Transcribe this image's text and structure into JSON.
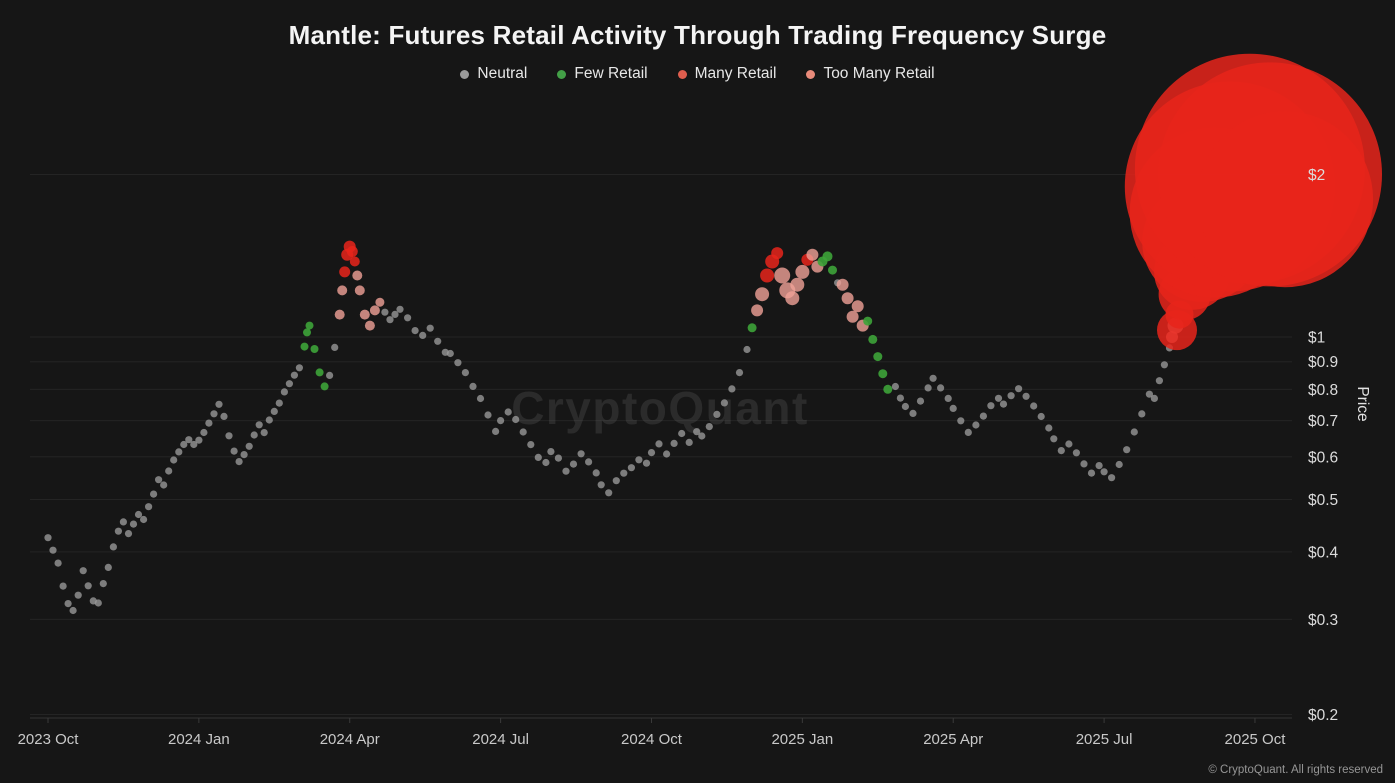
{
  "title": "Mantle: Futures Retail Activity Through Trading Frequency Surge",
  "watermark": "CryptoQuant",
  "footer": "© CryptoQuant. All rights reserved",
  "legend": [
    {
      "label": "Neutral",
      "color": "#9a9a9a"
    },
    {
      "label": "Few Retail",
      "color": "#43a047"
    },
    {
      "label": "Many Retail",
      "color": "#df5e4e"
    },
    {
      "label": "Too Many Retail",
      "color": "#e88a7a"
    }
  ],
  "chart_data": {
    "type": "scatter",
    "title": "Mantle: Futures Retail Activity Through Trading Frequency Surge",
    "x_axis": {
      "unit": "months since 2023-10",
      "ticks": [
        {
          "label": "2023 Oct",
          "m": 0
        },
        {
          "label": "2024 Jan",
          "m": 3
        },
        {
          "label": "2024 Apr",
          "m": 6
        },
        {
          "label": "2024 Jul",
          "m": 9
        },
        {
          "label": "2024 Oct",
          "m": 12
        },
        {
          "label": "2025 Jan",
          "m": 15
        },
        {
          "label": "2025 Apr",
          "m": 18
        },
        {
          "label": "2025 Jul",
          "m": 21
        },
        {
          "label": "2025 Oct",
          "m": 24
        }
      ]
    },
    "y_axis": {
      "label": "Price",
      "scale": "log",
      "range": [
        0.2,
        2.4
      ],
      "ticks": [
        {
          "label": "$2",
          "v": 2
        },
        {
          "label": "$1",
          "v": 1
        },
        {
          "label": "$0.9",
          "v": 0.9
        },
        {
          "label": "$0.8",
          "v": 0.8
        },
        {
          "label": "$0.7",
          "v": 0.7
        },
        {
          "label": "$0.6",
          "v": 0.6
        },
        {
          "label": "$0.5",
          "v": 0.5
        },
        {
          "label": "$0.4",
          "v": 0.4
        },
        {
          "label": "$0.3",
          "v": 0.3
        },
        {
          "label": "$0.2",
          "v": 0.2
        }
      ]
    },
    "categories": [
      {
        "name": "Neutral",
        "color": "#9b9b9b",
        "opacity": 0.78
      },
      {
        "name": "Few Retail",
        "color": "#3da339",
        "opacity": 0.9
      },
      {
        "name": "Many Retail",
        "color": "#f0a197",
        "opacity": 0.8
      },
      {
        "name": "Too Many Retail",
        "color": "#e7251b",
        "opacity": 0.85
      }
    ],
    "point_format": "[months_since_2023_10, price_usd, category_index, radius_px(optional)]",
    "points": [
      [
        0,
        0.425,
        0
      ],
      [
        0.1,
        0.405,
        0
      ],
      [
        0.2,
        0.385,
        0
      ],
      [
        0.3,
        0.35,
        0
      ],
      [
        0.4,
        0.325,
        0
      ],
      [
        0.5,
        0.315,
        0
      ],
      [
        0.6,
        0.335,
        0
      ],
      [
        0.7,
        0.37,
        0
      ],
      [
        0.8,
        0.345,
        0
      ],
      [
        0.9,
        0.322,
        0
      ],
      [
        1,
        0.318,
        0
      ],
      [
        1.1,
        0.345,
        0
      ],
      [
        1.2,
        0.37,
        0
      ],
      [
        1.3,
        0.405,
        0
      ],
      [
        1.4,
        0.435,
        0
      ],
      [
        1.5,
        0.455,
        0
      ],
      [
        1.6,
        0.435,
        0
      ],
      [
        1.7,
        0.455,
        0
      ],
      [
        1.8,
        0.475,
        0
      ],
      [
        1.9,
        0.465,
        0
      ],
      [
        2,
        0.49,
        0
      ],
      [
        2.1,
        0.515,
        0
      ],
      [
        2.2,
        0.545,
        0
      ],
      [
        2.3,
        0.53,
        0
      ],
      [
        2.4,
        0.56,
        0
      ],
      [
        2.5,
        0.585,
        0
      ],
      [
        2.6,
        0.605,
        0
      ],
      [
        2.7,
        0.625,
        0
      ],
      [
        2.8,
        0.64,
        0
      ],
      [
        2.9,
        0.63,
        0
      ],
      [
        3,
        0.645,
        0
      ],
      [
        3.1,
        0.67,
        0
      ],
      [
        3.2,
        0.7,
        0
      ],
      [
        3.3,
        0.73,
        0
      ],
      [
        3.4,
        0.76,
        0
      ],
      [
        3.5,
        0.72,
        0
      ],
      [
        3.6,
        0.66,
        0
      ],
      [
        3.7,
        0.615,
        0
      ],
      [
        3.8,
        0.585,
        0
      ],
      [
        3.9,
        0.6,
        0
      ],
      [
        4,
        0.62,
        0
      ],
      [
        4.1,
        0.65,
        0
      ],
      [
        4.2,
        0.68,
        0
      ],
      [
        4.3,
        0.66,
        0
      ],
      [
        4.4,
        0.7,
        0
      ],
      [
        4.5,
        0.73,
        0
      ],
      [
        4.6,
        0.76,
        0
      ],
      [
        4.7,
        0.8,
        0
      ],
      [
        4.8,
        0.83,
        0
      ],
      [
        4.9,
        0.86,
        0
      ],
      [
        5,
        0.885,
        0
      ],
      [
        5.1,
        0.96,
        1,
        4
      ],
      [
        5.15,
        1.02,
        1,
        4
      ],
      [
        5.2,
        1.05,
        1,
        4
      ],
      [
        5.3,
        0.95,
        1,
        4
      ],
      [
        5.4,
        0.86,
        1,
        4
      ],
      [
        5.5,
        0.81,
        1,
        4
      ],
      [
        5.6,
        0.84,
        0
      ],
      [
        5.7,
        0.95,
        0
      ],
      [
        5.8,
        1.1,
        2,
        5
      ],
      [
        5.85,
        1.22,
        2,
        5
      ],
      [
        5.9,
        1.32,
        3,
        5.5
      ],
      [
        5.95,
        1.42,
        3,
        6
      ],
      [
        6,
        1.47,
        3,
        6
      ],
      [
        6.05,
        1.44,
        3,
        5.5
      ],
      [
        6.1,
        1.38,
        3,
        5
      ],
      [
        6.15,
        1.3,
        2,
        5
      ],
      [
        6.2,
        1.22,
        2,
        5
      ],
      [
        6.3,
        1.1,
        2,
        5
      ],
      [
        6.4,
        1.05,
        2,
        5
      ],
      [
        6.5,
        1.12,
        2,
        5
      ],
      [
        6.6,
        1.16,
        2,
        4.5
      ],
      [
        6.7,
        1.1,
        0
      ],
      [
        6.8,
        1.07,
        0
      ],
      [
        6.9,
        1.1,
        0
      ],
      [
        7,
        1.13,
        0
      ],
      [
        7.15,
        1.095,
        0
      ],
      [
        7.3,
        1.04,
        0
      ],
      [
        7.45,
        1.02,
        0
      ],
      [
        7.6,
        1.05,
        0
      ],
      [
        7.75,
        0.99,
        0
      ],
      [
        7.9,
        0.94,
        0
      ],
      [
        8,
        0.93,
        0
      ],
      [
        8.15,
        0.89,
        0
      ],
      [
        8.3,
        0.85,
        0
      ],
      [
        8.45,
        0.8,
        0
      ],
      [
        8.6,
        0.76,
        0
      ],
      [
        8.75,
        0.71,
        0
      ],
      [
        8.9,
        0.665,
        0
      ],
      [
        9,
        0.7,
        0
      ],
      [
        9.15,
        0.73,
        0
      ],
      [
        9.3,
        0.71,
        0
      ],
      [
        9.45,
        0.675,
        0
      ],
      [
        9.6,
        0.64,
        0
      ],
      [
        9.75,
        0.605,
        0
      ],
      [
        9.9,
        0.59,
        0
      ],
      [
        10,
        0.615,
        0
      ],
      [
        10.15,
        0.595,
        0
      ],
      [
        10.3,
        0.56,
        0
      ],
      [
        10.45,
        0.575,
        0
      ],
      [
        10.6,
        0.6,
        0
      ],
      [
        10.75,
        0.58,
        0
      ],
      [
        10.9,
        0.555,
        0
      ],
      [
        11,
        0.53,
        0
      ],
      [
        11.15,
        0.515,
        0
      ],
      [
        11.3,
        0.545,
        0
      ],
      [
        11.45,
        0.565,
        0
      ],
      [
        11.6,
        0.58,
        0
      ],
      [
        11.75,
        0.6,
        0
      ],
      [
        11.9,
        0.59,
        0
      ],
      [
        12,
        0.615,
        0
      ],
      [
        12.15,
        0.635,
        0
      ],
      [
        12.3,
        0.605,
        0
      ],
      [
        12.45,
        0.63,
        0
      ],
      [
        12.6,
        0.655,
        0
      ],
      [
        12.75,
        0.63,
        0
      ],
      [
        12.9,
        0.66,
        0
      ],
      [
        13,
        0.65,
        0
      ],
      [
        13.15,
        0.68,
        0
      ],
      [
        13.3,
        0.72,
        0
      ],
      [
        13.45,
        0.76,
        0
      ],
      [
        13.6,
        0.81,
        0
      ],
      [
        13.75,
        0.87,
        0
      ],
      [
        13.9,
        0.96,
        0
      ],
      [
        14,
        1.04,
        1,
        4.5
      ],
      [
        14.1,
        1.12,
        2,
        6
      ],
      [
        14.2,
        1.2,
        2,
        7
      ],
      [
        14.3,
        1.3,
        3,
        7
      ],
      [
        14.4,
        1.38,
        3,
        7
      ],
      [
        14.5,
        1.43,
        3,
        6
      ],
      [
        14.6,
        1.3,
        2,
        8
      ],
      [
        14.7,
        1.22,
        2,
        8
      ],
      [
        14.8,
        1.18,
        2,
        7
      ],
      [
        14.9,
        1.25,
        2,
        7
      ],
      [
        15,
        1.32,
        2,
        7
      ],
      [
        15.1,
        1.39,
        3,
        6
      ],
      [
        15.2,
        1.42,
        2,
        6
      ],
      [
        15.3,
        1.35,
        2,
        6
      ],
      [
        15.4,
        1.38,
        1,
        5
      ],
      [
        15.5,
        1.41,
        1,
        5
      ],
      [
        15.6,
        1.33,
        1,
        4.5
      ],
      [
        15.7,
        1.26,
        0
      ],
      [
        15.8,
        1.25,
        2,
        6
      ],
      [
        15.9,
        1.18,
        2,
        6
      ],
      [
        16,
        1.09,
        2,
        6
      ],
      [
        16.1,
        1.14,
        2,
        6
      ],
      [
        16.2,
        1.05,
        2,
        6
      ],
      [
        16.3,
        1.07,
        1,
        4.5
      ],
      [
        16.4,
        0.99,
        1,
        4.5
      ],
      [
        16.5,
        0.92,
        1,
        4.5
      ],
      [
        16.6,
        0.855,
        1,
        4.5
      ],
      [
        16.7,
        0.8,
        1,
        4.5
      ],
      [
        16.85,
        0.82,
        0
      ],
      [
        16.95,
        0.78,
        0
      ],
      [
        17.05,
        0.75,
        0
      ],
      [
        17.2,
        0.725,
        0
      ],
      [
        17.35,
        0.76,
        0
      ],
      [
        17.5,
        0.8,
        0
      ],
      [
        17.6,
        0.83,
        0
      ],
      [
        17.75,
        0.795,
        0
      ],
      [
        17.9,
        0.76,
        0
      ],
      [
        18,
        0.73,
        0
      ],
      [
        18.15,
        0.695,
        0
      ],
      [
        18.3,
        0.665,
        0
      ],
      [
        18.45,
        0.69,
        0
      ],
      [
        18.6,
        0.72,
        0
      ],
      [
        18.75,
        0.755,
        0
      ],
      [
        18.9,
        0.78,
        0
      ],
      [
        19,
        0.76,
        0
      ],
      [
        19.15,
        0.785,
        0
      ],
      [
        19.3,
        0.805,
        0
      ],
      [
        19.45,
        0.775,
        0
      ],
      [
        19.6,
        0.74,
        0
      ],
      [
        19.75,
        0.705,
        0
      ],
      [
        19.9,
        0.67,
        0
      ],
      [
        20,
        0.64,
        0
      ],
      [
        20.15,
        0.61,
        0
      ],
      [
        20.3,
        0.63,
        0
      ],
      [
        20.45,
        0.61,
        0
      ],
      [
        20.6,
        0.585,
        0
      ],
      [
        20.75,
        0.565,
        0
      ],
      [
        20.9,
        0.585,
        0
      ],
      [
        21,
        0.57,
        0
      ],
      [
        21.15,
        0.555,
        0
      ],
      [
        21.3,
        0.585,
        0
      ],
      [
        21.45,
        0.62,
        0
      ],
      [
        21.6,
        0.665,
        0
      ],
      [
        21.75,
        0.715,
        0
      ],
      [
        21.9,
        0.775,
        0
      ],
      [
        22,
        0.76,
        0
      ],
      [
        22.1,
        0.82,
        0
      ],
      [
        22.2,
        0.88,
        0
      ],
      [
        22.3,
        0.95,
        0
      ],
      [
        22.35,
        1,
        2,
        6
      ],
      [
        22.42,
        1.05,
        2,
        8
      ],
      [
        22.45,
        1.03,
        3,
        20
      ],
      [
        22.5,
        1.1,
        3,
        14
      ],
      [
        22.6,
        1.2,
        3,
        26
      ],
      [
        22.75,
        1.32,
        3,
        38
      ],
      [
        22.95,
        1.5,
        3,
        60
      ],
      [
        23.2,
        1.7,
        3,
        85
      ],
      [
        23.5,
        1.9,
        3,
        105
      ],
      [
        23.9,
        2.05,
        3,
        115
      ],
      [
        24.3,
        2,
        3,
        112
      ],
      [
        24.6,
        1.8,
        3,
        88
      ]
    ]
  }
}
